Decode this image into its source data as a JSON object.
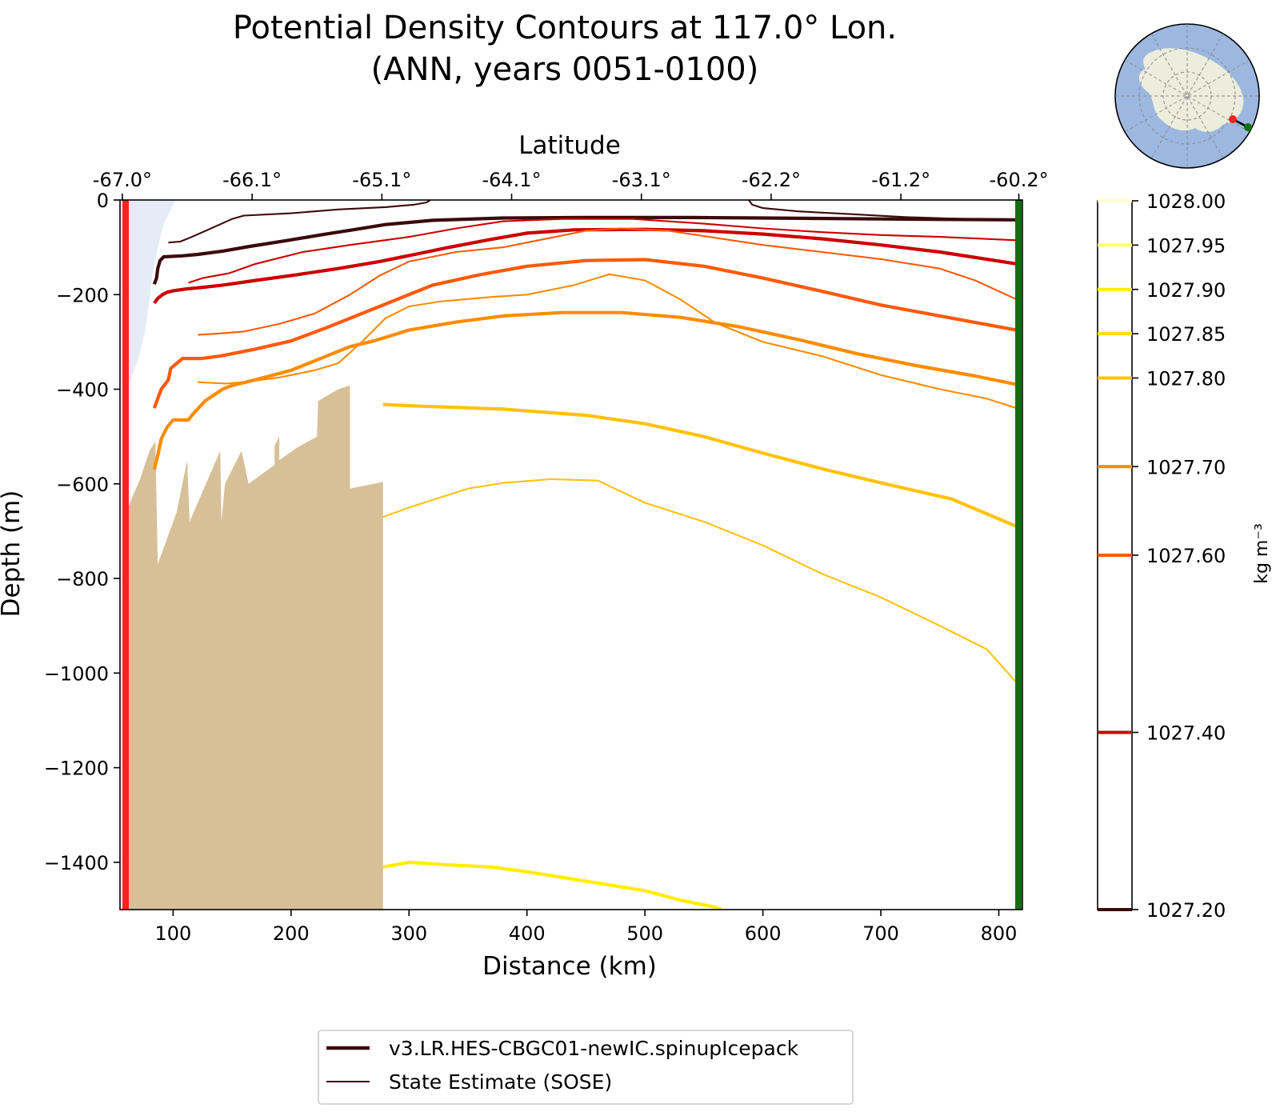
{
  "chart_data": {
    "type": "line",
    "title": "Potential Density Contours at 117.0° Lon.",
    "subtitle": "(ANN, years 0051-0100)",
    "xlabel": "Distance (km)",
    "ylabel": "Depth (m)",
    "top_axis_label": "Latitude",
    "xlim": [
      55,
      820
    ],
    "ylim": [
      -1500,
      0
    ],
    "x_ticks": [
      100,
      200,
      300,
      400,
      500,
      600,
      700,
      800
    ],
    "y_ticks": [
      0,
      -200,
      -400,
      -600,
      -800,
      -1000,
      -1200,
      -1400
    ],
    "x_tick_labels": [
      "100",
      "200",
      "300",
      "400",
      "500",
      "600",
      "700",
      "800"
    ],
    "y_tick_labels": [
      "0",
      "−200",
      "−400",
      "−600",
      "−800",
      "−1000",
      "−1200",
      "−1400"
    ],
    "lat_ticks": [
      {
        "x": 57,
        "label": "-67.0°"
      },
      {
        "x": 167,
        "label": "-66.1°"
      },
      {
        "x": 277,
        "label": "-65.1°"
      },
      {
        "x": 387,
        "label": "-64.1°"
      },
      {
        "x": 497,
        "label": "-63.1°"
      },
      {
        "x": 607,
        "label": "-62.2°"
      },
      {
        "x": 717,
        "label": "-61.2°"
      },
      {
        "x": 817,
        "label": "-60.2°"
      }
    ],
    "colorbar": {
      "label": "kg m⁻³",
      "range": [
        1027.2,
        1028.0
      ],
      "ticks": [
        {
          "value": 1028.0,
          "label": "1028.00",
          "color": "#ffffcc"
        },
        {
          "value": 1027.95,
          "label": "1027.95",
          "color": "#ffff66"
        },
        {
          "value": 1027.9,
          "label": "1027.90",
          "color": "#ffee00"
        },
        {
          "value": 1027.85,
          "label": "1027.85",
          "color": "#ffdd00"
        },
        {
          "value": 1027.8,
          "label": "1027.80",
          "color": "#ffc20e"
        },
        {
          "value": 1027.7,
          "label": "1027.70",
          "color": "#ff8c00"
        },
        {
          "value": 1027.6,
          "label": "1027.60",
          "color": "#ff5a0a"
        },
        {
          "value": 1027.4,
          "label": "1027.40",
          "color": "#cc0000"
        },
        {
          "value": 1027.2,
          "label": "1027.20",
          "color": "#3b0a0a"
        }
      ]
    },
    "legend": {
      "placement": "bottom-center",
      "entries": [
        {
          "label": "v3.LR.HES-CBGC01-newIC.spinupIcepack",
          "style": "thick",
          "color": "#3b0a0a"
        },
        {
          "label": "State Estimate (SOSE)",
          "style": "thin",
          "color": "#3b0a0a"
        }
      ]
    },
    "ice_shelf": [
      [
        60,
        0
      ],
      [
        102,
        0
      ],
      [
        98,
        -20
      ],
      [
        92,
        -50
      ],
      [
        87,
        -100
      ],
      [
        83,
        -150
      ],
      [
        80,
        -210
      ],
      [
        76,
        -280
      ],
      [
        70,
        -340
      ],
      [
        64,
        -380
      ],
      [
        60,
        -400
      ]
    ],
    "topography": [
      [
        60,
        -1500
      ],
      [
        60,
        -660
      ],
      [
        72,
        -590
      ],
      [
        80,
        -530
      ],
      [
        85,
        -510
      ],
      [
        87,
        -770
      ],
      [
        103,
        -660
      ],
      [
        112,
        -550
      ],
      [
        114,
        -680
      ],
      [
        140,
        -530
      ],
      [
        141,
        -680
      ],
      [
        144,
        -600
      ],
      [
        158,
        -530
      ],
      [
        164,
        -600
      ],
      [
        186,
        -560
      ],
      [
        186,
        -520
      ],
      [
        190,
        -500
      ],
      [
        190,
        -550
      ],
      [
        204,
        -525
      ],
      [
        222,
        -500
      ],
      [
        223,
        -425
      ],
      [
        240,
        -400
      ],
      [
        250,
        -392
      ],
      [
        250,
        -610
      ],
      [
        278,
        -596
      ],
      [
        278,
        -1500
      ]
    ],
    "ice_shelf_color": "#e3ecf7",
    "topography_color": "#d7c098",
    "south_boundary_color": "#ff2020",
    "north_boundary_color": "#107010",
    "series": [
      {
        "density": 1027.2,
        "source": "model",
        "color": "#3b0a0a",
        "points": [
          [
            84,
            -178
          ],
          [
            86,
            -165
          ],
          [
            87,
            -145
          ],
          [
            89,
            -128
          ],
          [
            92,
            -120
          ],
          [
            108,
            -118
          ],
          [
            121,
            -115
          ],
          [
            142,
            -108
          ],
          [
            165,
            -98
          ],
          [
            198,
            -85
          ],
          [
            227,
            -73
          ],
          [
            255,
            -62
          ],
          [
            280,
            -52
          ],
          [
            320,
            -43
          ],
          [
            380,
            -38
          ],
          [
            450,
            -37
          ],
          [
            540,
            -37
          ],
          [
            600,
            -38
          ],
          [
            700,
            -40
          ],
          [
            815,
            -42
          ]
        ]
      },
      {
        "density": 1027.2,
        "source": "sose",
        "color": "#3b0a0a",
        "points": [
          [
            96,
            -90
          ],
          [
            106,
            -88
          ],
          [
            114,
            -80
          ],
          [
            125,
            -68
          ],
          [
            150,
            -40
          ],
          [
            160,
            -33
          ],
          [
            200,
            -28
          ],
          [
            240,
            -20
          ],
          [
            280,
            -15
          ],
          [
            304,
            -10
          ],
          [
            315,
            -5
          ],
          [
            318,
            0
          ]
        ]
      },
      {
        "density": 1027.2,
        "source": "sose",
        "color": "#3b0a0a",
        "points": [
          [
            588,
            0
          ],
          [
            591,
            -10
          ],
          [
            600,
            -17
          ],
          [
            630,
            -24
          ],
          [
            675,
            -30
          ],
          [
            720,
            -36
          ],
          [
            770,
            -40
          ],
          [
            815,
            -42
          ]
        ]
      },
      {
        "density": 1027.4,
        "source": "model",
        "color": "#cc0000",
        "points": [
          [
            84,
            -218
          ],
          [
            87,
            -208
          ],
          [
            91,
            -200
          ],
          [
            95,
            -195
          ],
          [
            100,
            -192
          ],
          [
            111,
            -188
          ],
          [
            124,
            -185
          ],
          [
            142,
            -180
          ],
          [
            170,
            -170
          ],
          [
            205,
            -158
          ],
          [
            240,
            -145
          ],
          [
            275,
            -130
          ],
          [
            305,
            -115
          ],
          [
            330,
            -102
          ],
          [
            370,
            -83
          ],
          [
            400,
            -70
          ],
          [
            440,
            -63
          ],
          [
            500,
            -62
          ],
          [
            550,
            -65
          ],
          [
            600,
            -72
          ],
          [
            650,
            -82
          ],
          [
            700,
            -95
          ],
          [
            750,
            -110
          ],
          [
            815,
            -135
          ]
        ]
      },
      {
        "density": 1027.4,
        "source": "sose",
        "color": "#cc0000",
        "points": [
          [
            113,
            -175
          ],
          [
            125,
            -165
          ],
          [
            147,
            -155
          ],
          [
            170,
            -135
          ],
          [
            210,
            -110
          ],
          [
            250,
            -95
          ],
          [
            300,
            -78
          ],
          [
            340,
            -60
          ],
          [
            380,
            -45
          ],
          [
            430,
            -40
          ],
          [
            490,
            -40
          ],
          [
            550,
            -50
          ],
          [
            600,
            -60
          ],
          [
            650,
            -68
          ],
          [
            700,
            -74
          ],
          [
            750,
            -78
          ],
          [
            815,
            -85
          ]
        ]
      },
      {
        "density": 1027.6,
        "source": "model",
        "color": "#ff5a0a",
        "points": [
          [
            84,
            -440
          ],
          [
            87,
            -420
          ],
          [
            90,
            -400
          ],
          [
            96,
            -380
          ],
          [
            98,
            -356
          ],
          [
            108,
            -335
          ],
          [
            124,
            -335
          ],
          [
            140,
            -330
          ],
          [
            170,
            -315
          ],
          [
            200,
            -298
          ],
          [
            230,
            -270
          ],
          [
            260,
            -240
          ],
          [
            290,
            -210
          ],
          [
            320,
            -180
          ],
          [
            360,
            -158
          ],
          [
            400,
            -140
          ],
          [
            450,
            -128
          ],
          [
            500,
            -126
          ],
          [
            550,
            -140
          ],
          [
            600,
            -165
          ],
          [
            650,
            -193
          ],
          [
            700,
            -222
          ],
          [
            750,
            -245
          ],
          [
            815,
            -275
          ]
        ]
      },
      {
        "density": 1027.6,
        "source": "sose",
        "color": "#ff5a0a",
        "points": [
          [
            121,
            -285
          ],
          [
            135,
            -283
          ],
          [
            160,
            -278
          ],
          [
            190,
            -262
          ],
          [
            220,
            -240
          ],
          [
            250,
            -200
          ],
          [
            275,
            -160
          ],
          [
            300,
            -130
          ],
          [
            340,
            -110
          ],
          [
            380,
            -100
          ],
          [
            420,
            -80
          ],
          [
            450,
            -65
          ],
          [
            480,
            -60
          ],
          [
            520,
            -65
          ],
          [
            560,
            -80
          ],
          [
            600,
            -95
          ],
          [
            650,
            -110
          ],
          [
            700,
            -125
          ],
          [
            750,
            -145
          ],
          [
            780,
            -170
          ],
          [
            815,
            -210
          ]
        ]
      },
      {
        "density": 1027.7,
        "source": "model",
        "color": "#ff8c00",
        "points": [
          [
            84,
            -570
          ],
          [
            87,
            -540
          ],
          [
            90,
            -505
          ],
          [
            95,
            -480
          ],
          [
            100,
            -465
          ],
          [
            113,
            -465
          ],
          [
            116,
            -455
          ],
          [
            127,
            -425
          ],
          [
            142,
            -400
          ],
          [
            150,
            -392
          ],
          [
            170,
            -380
          ],
          [
            200,
            -360
          ],
          [
            220,
            -340
          ],
          [
            250,
            -310
          ],
          [
            270,
            -298
          ],
          [
            300,
            -275
          ],
          [
            340,
            -258
          ],
          [
            380,
            -245
          ],
          [
            430,
            -238
          ],
          [
            480,
            -238
          ],
          [
            530,
            -248
          ],
          [
            580,
            -268
          ],
          [
            630,
            -295
          ],
          [
            680,
            -325
          ],
          [
            730,
            -350
          ],
          [
            780,
            -372
          ],
          [
            815,
            -390
          ]
        ]
      },
      {
        "density": 1027.7,
        "source": "sose",
        "color": "#ff8c00",
        "points": [
          [
            121,
            -385
          ],
          [
            145,
            -388
          ],
          [
            160,
            -385
          ],
          [
            190,
            -375
          ],
          [
            220,
            -360
          ],
          [
            240,
            -345
          ],
          [
            260,
            -300
          ],
          [
            280,
            -250
          ],
          [
            300,
            -225
          ],
          [
            325,
            -215
          ],
          [
            370,
            -205
          ],
          [
            400,
            -200
          ],
          [
            440,
            -180
          ],
          [
            470,
            -157
          ],
          [
            500,
            -170
          ],
          [
            530,
            -210
          ],
          [
            560,
            -260
          ],
          [
            600,
            -300
          ],
          [
            650,
            -330
          ],
          [
            700,
            -370
          ],
          [
            750,
            -400
          ],
          [
            790,
            -420
          ],
          [
            815,
            -440
          ]
        ]
      },
      {
        "density": 1027.8,
        "source": "model",
        "color": "#ffc20e",
        "points": [
          [
            278,
            -432
          ],
          [
            300,
            -435
          ],
          [
            380,
            -442
          ],
          [
            450,
            -455
          ],
          [
            500,
            -473
          ],
          [
            550,
            -500
          ],
          [
            600,
            -535
          ],
          [
            650,
            -568
          ],
          [
            700,
            -598
          ],
          [
            760,
            -632
          ],
          [
            815,
            -690
          ]
        ]
      },
      {
        "density": 1027.8,
        "source": "sose",
        "color": "#ffc20e",
        "points": [
          [
            278,
            -670
          ],
          [
            300,
            -650
          ],
          [
            350,
            -610
          ],
          [
            380,
            -598
          ],
          [
            420,
            -590
          ],
          [
            460,
            -593
          ],
          [
            500,
            -640
          ],
          [
            550,
            -680
          ],
          [
            600,
            -730
          ],
          [
            650,
            -790
          ],
          [
            700,
            -840
          ],
          [
            750,
            -900
          ],
          [
            790,
            -950
          ],
          [
            815,
            -1020
          ]
        ]
      },
      {
        "density": 1027.9,
        "source": "model",
        "color": "#ffee00",
        "points": [
          [
            278,
            -1410
          ],
          [
            300,
            -1400
          ],
          [
            330,
            -1405
          ],
          [
            370,
            -1410
          ],
          [
            400,
            -1420
          ],
          [
            450,
            -1440
          ],
          [
            500,
            -1460
          ],
          [
            530,
            -1480
          ],
          [
            560,
            -1495
          ],
          [
            565,
            -1500
          ]
        ]
      }
    ]
  }
}
